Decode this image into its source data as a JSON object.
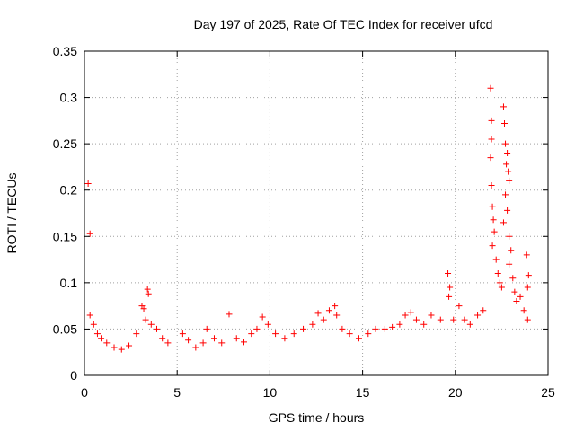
{
  "chart_data": {
    "type": "scatter",
    "title": "Day 197 of 2025, Rate Of TEC Index for receiver ufcd",
    "xlabel": "GPS time / hours",
    "ylabel": "ROTI / TECUs",
    "xlim": [
      0,
      25
    ],
    "ylim": [
      0,
      0.35
    ],
    "xticks": [
      0,
      5,
      10,
      15,
      20,
      25
    ],
    "xtick_labels": [
      "0",
      "5",
      "10",
      "15",
      "20",
      "25"
    ],
    "yticks": [
      0,
      0.05,
      0.1,
      0.15,
      0.2,
      0.25,
      0.3,
      0.35
    ],
    "ytick_labels": [
      "0",
      "0.05",
      "0.1",
      "0.15",
      "0.2",
      "0.25",
      "0.3",
      "0.35"
    ],
    "grid": true,
    "marker": "+",
    "color": "#ff0000",
    "series": [
      {
        "points": [
          [
            0.2,
            0.207
          ],
          [
            0.3,
            0.153
          ],
          [
            0.3,
            0.065
          ],
          [
            0.5,
            0.055
          ],
          [
            0.7,
            0.045
          ],
          [
            0.9,
            0.04
          ],
          [
            1.2,
            0.035
          ],
          [
            1.6,
            0.03
          ],
          [
            2.0,
            0.028
          ],
          [
            2.4,
            0.032
          ],
          [
            2.8,
            0.045
          ],
          [
            3.1,
            0.075
          ],
          [
            3.2,
            0.072
          ],
          [
            3.4,
            0.093
          ],
          [
            3.45,
            0.088
          ],
          [
            3.3,
            0.06
          ],
          [
            3.6,
            0.055
          ],
          [
            3.9,
            0.05
          ],
          [
            4.2,
            0.04
          ],
          [
            4.5,
            0.035
          ],
          [
            5.3,
            0.045
          ],
          [
            5.6,
            0.038
          ],
          [
            6.0,
            0.03
          ],
          [
            6.4,
            0.035
          ],
          [
            6.6,
            0.05
          ],
          [
            7.0,
            0.04
          ],
          [
            7.4,
            0.035
          ],
          [
            7.8,
            0.066
          ],
          [
            8.2,
            0.04
          ],
          [
            8.6,
            0.036
          ],
          [
            9.0,
            0.045
          ],
          [
            9.3,
            0.05
          ],
          [
            9.6,
            0.063
          ],
          [
            9.9,
            0.055
          ],
          [
            10.3,
            0.045
          ],
          [
            10.8,
            0.04
          ],
          [
            11.3,
            0.045
          ],
          [
            11.8,
            0.05
          ],
          [
            12.3,
            0.055
          ],
          [
            12.6,
            0.067
          ],
          [
            12.9,
            0.06
          ],
          [
            13.2,
            0.07
          ],
          [
            13.5,
            0.075
          ],
          [
            13.6,
            0.065
          ],
          [
            13.9,
            0.05
          ],
          [
            14.3,
            0.045
          ],
          [
            14.8,
            0.04
          ],
          [
            15.3,
            0.045
          ],
          [
            15.7,
            0.05
          ],
          [
            16.2,
            0.05
          ],
          [
            16.6,
            0.052
          ],
          [
            17.0,
            0.055
          ],
          [
            17.3,
            0.065
          ],
          [
            17.6,
            0.068
          ],
          [
            17.9,
            0.06
          ],
          [
            18.3,
            0.055
          ],
          [
            18.7,
            0.065
          ],
          [
            19.2,
            0.06
          ],
          [
            19.6,
            0.11
          ],
          [
            19.7,
            0.095
          ],
          [
            19.65,
            0.085
          ],
          [
            19.9,
            0.06
          ],
          [
            20.2,
            0.075
          ],
          [
            20.5,
            0.06
          ],
          [
            20.8,
            0.055
          ],
          [
            21.2,
            0.065
          ],
          [
            21.5,
            0.07
          ],
          [
            21.9,
            0.31
          ],
          [
            21.95,
            0.275
          ],
          [
            21.95,
            0.255
          ],
          [
            21.9,
            0.235
          ],
          [
            21.95,
            0.205
          ],
          [
            22.0,
            0.182
          ],
          [
            22.05,
            0.168
          ],
          [
            22.1,
            0.155
          ],
          [
            22.0,
            0.14
          ],
          [
            22.2,
            0.125
          ],
          [
            22.3,
            0.11
          ],
          [
            22.4,
            0.1
          ],
          [
            22.5,
            0.095
          ],
          [
            22.6,
            0.29
          ],
          [
            22.65,
            0.272
          ],
          [
            22.7,
            0.25
          ],
          [
            22.8,
            0.24
          ],
          [
            22.75,
            0.228
          ],
          [
            22.85,
            0.22
          ],
          [
            22.9,
            0.21
          ],
          [
            22.7,
            0.195
          ],
          [
            22.8,
            0.178
          ],
          [
            22.6,
            0.165
          ],
          [
            22.9,
            0.15
          ],
          [
            23.0,
            0.135
          ],
          [
            22.9,
            0.12
          ],
          [
            23.1,
            0.105
          ],
          [
            23.2,
            0.09
          ],
          [
            23.3,
            0.08
          ],
          [
            23.5,
            0.085
          ],
          [
            23.7,
            0.07
          ],
          [
            23.9,
            0.095
          ],
          [
            23.85,
            0.13
          ],
          [
            23.95,
            0.108
          ],
          [
            23.9,
            0.06
          ]
        ]
      }
    ]
  }
}
